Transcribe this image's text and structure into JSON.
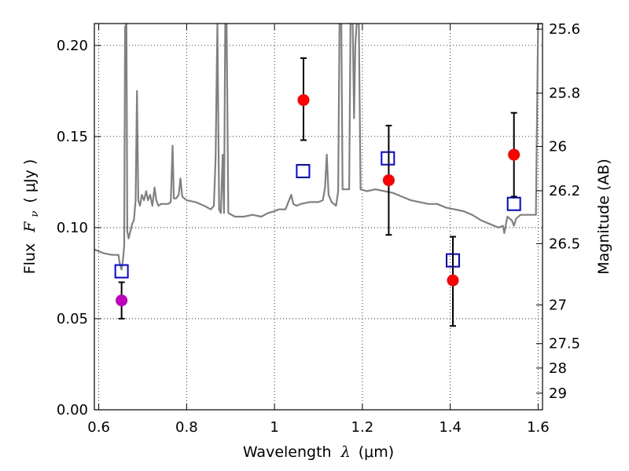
{
  "chart_data": {
    "type": "scatter",
    "xlabel": "Wavelength",
    "xlabel_symbol": "λ",
    "xlabel_unit": "(μm)",
    "ylabel": "Flux",
    "ylabel_symbol": "F",
    "ylabel_subscript": "ν",
    "ylabel_unit": "( μJy )",
    "y2label": "Magnitude (AB)",
    "xlim": [
      0.59,
      1.61
    ],
    "ylim": [
      0.0,
      0.212
    ],
    "grid": true,
    "x_ticks": [
      0.6,
      0.8,
      1.0,
      1.2,
      1.4,
      1.6
    ],
    "x_tick_labels": [
      "0.6",
      "0.8",
      "1",
      "1.2",
      "1.4",
      "1.6"
    ],
    "y_ticks": [
      0.0,
      0.05,
      0.1,
      0.15,
      0.2
    ],
    "y_tick_labels": [
      "0.00",
      "0.05",
      "0.10",
      "0.15",
      "0.20"
    ],
    "y2_tick_labels": [
      "25.6",
      "25.8",
      "26",
      "26.2",
      "26.5",
      "27",
      "27.5",
      "28",
      "29"
    ],
    "y2_tick_values": [
      25.6,
      25.8,
      26.0,
      26.2,
      26.5,
      27.0,
      27.5,
      28.0,
      29.0
    ],
    "series": [
      {
        "type": "line",
        "color": "#808080",
        "points": [
          [
            0.59,
            0.088
          ],
          [
            0.61,
            0.086
          ],
          [
            0.63,
            0.085
          ],
          [
            0.645,
            0.085
          ],
          [
            0.648,
            0.08
          ],
          [
            0.652,
            0.077
          ],
          [
            0.655,
            0.082
          ],
          [
            0.658,
            0.09
          ],
          [
            0.66,
            0.21
          ],
          [
            0.663,
            0.212
          ],
          [
            0.665,
            0.098
          ],
          [
            0.668,
            0.094
          ],
          [
            0.672,
            0.098
          ],
          [
            0.676,
            0.102
          ],
          [
            0.68,
            0.104
          ],
          [
            0.684,
            0.115
          ],
          [
            0.687,
            0.175
          ],
          [
            0.69,
            0.115
          ],
          [
            0.694,
            0.112
          ],
          [
            0.698,
            0.118
          ],
          [
            0.703,
            0.115
          ],
          [
            0.708,
            0.12
          ],
          [
            0.712,
            0.115
          ],
          [
            0.717,
            0.118
          ],
          [
            0.722,
            0.112
          ],
          [
            0.727,
            0.122
          ],
          [
            0.731,
            0.115
          ],
          [
            0.736,
            0.112
          ],
          [
            0.742,
            0.113
          ],
          [
            0.75,
            0.113
          ],
          [
            0.758,
            0.113
          ],
          [
            0.764,
            0.114
          ],
          [
            0.768,
            0.145
          ],
          [
            0.771,
            0.116
          ],
          [
            0.776,
            0.116
          ],
          [
            0.782,
            0.118
          ],
          [
            0.786,
            0.127
          ],
          [
            0.79,
            0.117
          ],
          [
            0.8,
            0.115
          ],
          [
            0.82,
            0.114
          ],
          [
            0.84,
            0.112
          ],
          [
            0.855,
            0.11
          ],
          [
            0.862,
            0.112
          ],
          [
            0.866,
            0.138
          ],
          [
            0.87,
            0.212
          ],
          [
            0.874,
            0.11
          ],
          [
            0.878,
            0.108
          ],
          [
            0.882,
            0.14
          ],
          [
            0.885,
            0.108
          ],
          [
            0.888,
            0.212
          ],
          [
            0.891,
            0.212
          ],
          [
            0.895,
            0.108
          ],
          [
            0.91,
            0.106
          ],
          [
            0.93,
            0.106
          ],
          [
            0.95,
            0.107
          ],
          [
            0.97,
            0.106
          ],
          [
            0.985,
            0.108
          ],
          [
            1.0,
            0.109
          ],
          [
            1.01,
            0.11
          ],
          [
            1.025,
            0.11
          ],
          [
            1.038,
            0.118
          ],
          [
            1.043,
            0.113
          ],
          [
            1.05,
            0.112
          ],
          [
            1.06,
            0.113
          ],
          [
            1.08,
            0.114
          ],
          [
            1.1,
            0.114
          ],
          [
            1.11,
            0.115
          ],
          [
            1.115,
            0.122
          ],
          [
            1.119,
            0.14
          ],
          [
            1.123,
            0.118
          ],
          [
            1.13,
            0.114
          ],
          [
            1.14,
            0.112
          ],
          [
            1.145,
            0.12
          ],
          [
            1.148,
            0.212
          ],
          [
            1.152,
            0.212
          ],
          [
            1.155,
            0.121
          ],
          [
            1.17,
            0.121
          ],
          [
            1.173,
            0.212
          ],
          [
            1.178,
            0.212
          ],
          [
            1.181,
            0.16
          ],
          [
            1.184,
            0.2
          ],
          [
            1.187,
            0.212
          ],
          [
            1.192,
            0.212
          ],
          [
            1.196,
            0.121
          ],
          [
            1.21,
            0.12
          ],
          [
            1.23,
            0.121
          ],
          [
            1.25,
            0.12
          ],
          [
            1.27,
            0.119
          ],
          [
            1.29,
            0.117
          ],
          [
            1.31,
            0.115
          ],
          [
            1.33,
            0.114
          ],
          [
            1.35,
            0.113
          ],
          [
            1.37,
            0.113
          ],
          [
            1.39,
            0.111
          ],
          [
            1.41,
            0.11
          ],
          [
            1.43,
            0.109
          ],
          [
            1.45,
            0.107
          ],
          [
            1.47,
            0.104
          ],
          [
            1.49,
            0.102
          ],
          [
            1.51,
            0.1
          ],
          [
            1.52,
            0.101
          ],
          [
            1.523,
            0.097
          ],
          [
            1.53,
            0.106
          ],
          [
            1.54,
            0.104
          ],
          [
            1.545,
            0.101
          ],
          [
            1.55,
            0.105
          ],
          [
            1.56,
            0.107
          ],
          [
            1.58,
            0.107
          ],
          [
            1.595,
            0.107
          ],
          [
            1.6,
            0.212
          ],
          [
            1.605,
            0.212
          ],
          [
            1.61,
            0.212
          ]
        ]
      },
      {
        "type": "scatter",
        "marker": "square-open",
        "color": "#0000ff",
        "points": [
          [
            0.652,
            0.076
          ],
          [
            1.065,
            0.131
          ],
          [
            1.258,
            0.138
          ],
          [
            1.406,
            0.082
          ],
          [
            1.545,
            0.113
          ]
        ]
      },
      {
        "type": "scatter",
        "marker": "circle-filled",
        "color": "#ff0000",
        "points": [
          {
            "x": 1.066,
            "y": 0.17,
            "lo": 0.148,
            "hi": 0.193
          },
          {
            "x": 1.26,
            "y": 0.126,
            "lo": 0.096,
            "hi": 0.156
          },
          {
            "x": 1.406,
            "y": 0.071,
            "lo": 0.046,
            "hi": 0.095
          },
          {
            "x": 1.545,
            "y": 0.14,
            "lo": 0.117,
            "hi": 0.163
          }
        ]
      },
      {
        "type": "scatter",
        "marker": "circle-filled",
        "color": "#bf00bf",
        "points": [
          {
            "x": 0.652,
            "y": 0.06,
            "lo": 0.05,
            "hi": 0.07
          }
        ]
      }
    ]
  }
}
